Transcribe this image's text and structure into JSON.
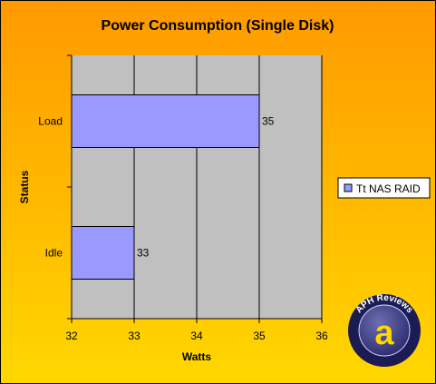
{
  "chart_data": {
    "type": "bar",
    "orientation": "horizontal",
    "title": "Power Consumption (Single Disk)",
    "xlabel": "Watts",
    "ylabel": "Status",
    "categories": [
      "Load",
      "Idle"
    ],
    "series": [
      {
        "name": "Tt NAS RAID",
        "values": [
          35,
          33
        ],
        "color": "#9999ff"
      }
    ],
    "xlim": [
      32,
      36
    ],
    "xticks": [
      "32",
      "33",
      "34",
      "35",
      "36"
    ],
    "grid": true,
    "legend": "right",
    "data_labels": true
  },
  "colors": {
    "background_top": "#ff9900",
    "background_bottom": "#ffd700",
    "plot_area": "#c0c0c0",
    "bar": "#9999ff"
  },
  "watermark": {
    "text": "APH Reviews",
    "letter": "a"
  }
}
